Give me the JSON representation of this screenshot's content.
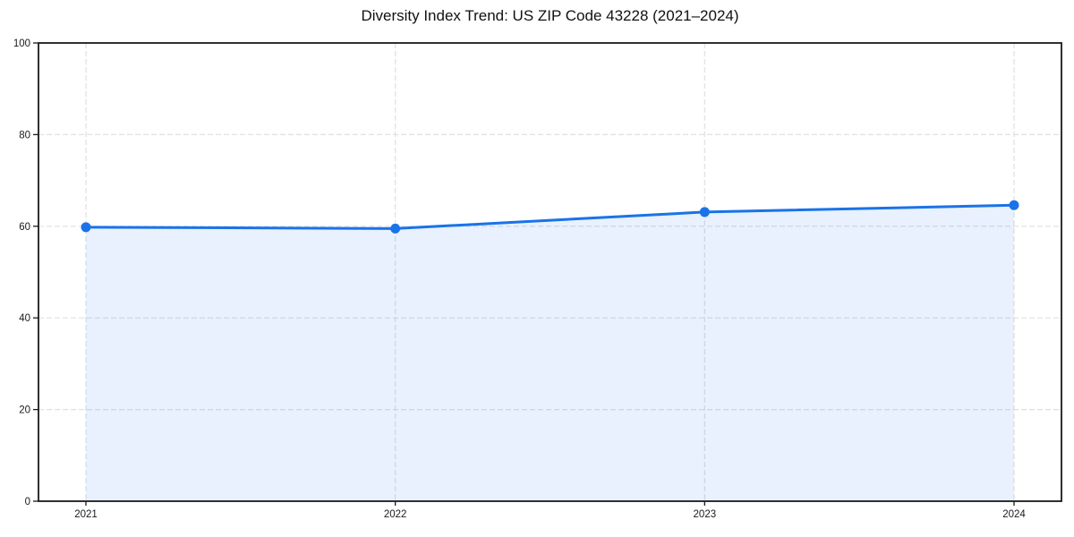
{
  "chart_data": {
    "type": "line",
    "subtype": "area-filled-line-with-markers",
    "title": "Diversity Index Trend: US ZIP Code 43228 (2021–2024)",
    "x": [
      "2021",
      "2022",
      "2023",
      "2024"
    ],
    "series": [
      {
        "name": "Diversity Index",
        "values": [
          59.8,
          59.5,
          63.1,
          64.6
        ]
      }
    ],
    "xlabel": "",
    "ylabel": "",
    "ylim": [
      0,
      100
    ],
    "yticks": [
      0,
      20,
      40,
      60,
      80,
      100
    ],
    "grid": "dashed, both horizontal and vertical at ticks",
    "legend": "none",
    "colors": {
      "line": "#1a73e8",
      "marker": "#1a73e8",
      "fill": "rgba(26,115,232,0.10)",
      "gridline": "#e0e0e0",
      "spine": "#1a1a1a",
      "tick_label": "#1a1a1a",
      "title": "#111111",
      "background": "#ffffff"
    }
  }
}
